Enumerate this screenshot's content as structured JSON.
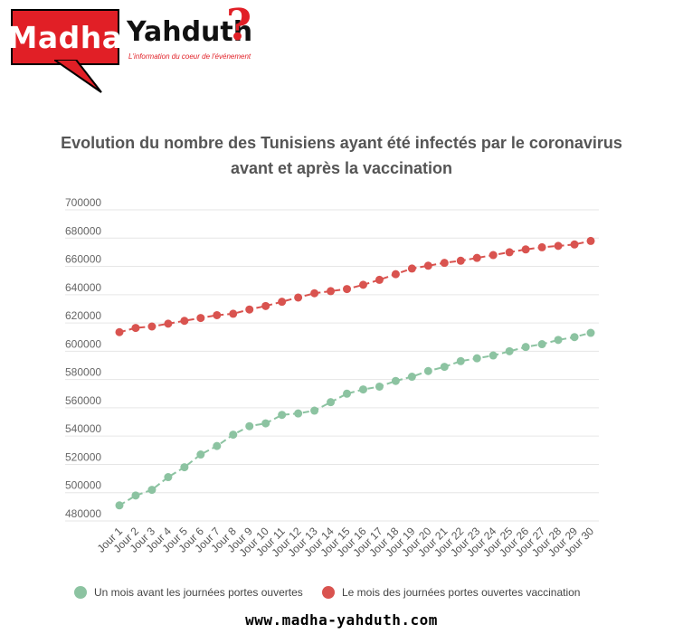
{
  "logo": {
    "main": "Madha",
    "side": "Yahduth",
    "question_mark": "?",
    "tagline": "L'information du coeur de l'événement"
  },
  "website": "www.madha-yahduth.com",
  "colors": {
    "series_before": "#8cc3a1",
    "series_during": "#d9534f",
    "logo_red": "#e11f26"
  },
  "chart_data": {
    "type": "line",
    "title": "Evolution du nombre des Tunisiens ayant été infectés par le coronavirus avant et après la vaccination",
    "xlabel": "",
    "ylabel": "",
    "ylim": [
      480000,
      700000
    ],
    "yticks": [
      480000,
      500000,
      520000,
      540000,
      560000,
      580000,
      600000,
      620000,
      640000,
      660000,
      680000,
      700000
    ],
    "grid": true,
    "line_style": "dashed",
    "legend_position": "bottom",
    "categories": [
      "Jour 1",
      "Jour 2",
      "Jour 3",
      "Jour 4",
      "Jour 5",
      "Jour 6",
      "Jour 7",
      "Jour 8",
      "Jour 9",
      "Jour 10",
      "Jour 11",
      "Jour 12",
      "Jour 13",
      "Jour 14",
      "Jour 15",
      "Jour 16",
      "Jour 17",
      "Jour 18",
      "Jour 19",
      "Jour 20",
      "Jour 21",
      "Jour 22",
      "Jour 23",
      "Jour 24",
      "Jour 25",
      "Jour 26",
      "Jour 27",
      "Jour 28",
      "Jour 29",
      "Jour 30"
    ],
    "series": [
      {
        "name": "Un mois avant les journées portes ouvertes",
        "color": "#8cc3a1",
        "values": [
          491000,
          498000,
          502000,
          511000,
          518000,
          527000,
          533000,
          541000,
          547000,
          549000,
          555000,
          556000,
          558000,
          564000,
          570000,
          573000,
          575000,
          579000,
          582000,
          586000,
          589000,
          593000,
          595000,
          597000,
          600000,
          603000,
          605000,
          608000,
          610000,
          613000
        ]
      },
      {
        "name": "Le mois des journées portes ouvertes vaccination",
        "color": "#d9534f",
        "values": [
          613500,
          616500,
          617500,
          619500,
          621500,
          623500,
          625500,
          626500,
          629500,
          632000,
          635000,
          638000,
          641000,
          642500,
          644000,
          647000,
          650500,
          654500,
          658500,
          660500,
          662500,
          664000,
          666000,
          668000,
          670000,
          672000,
          673500,
          674500,
          675500,
          678000
        ]
      }
    ]
  }
}
